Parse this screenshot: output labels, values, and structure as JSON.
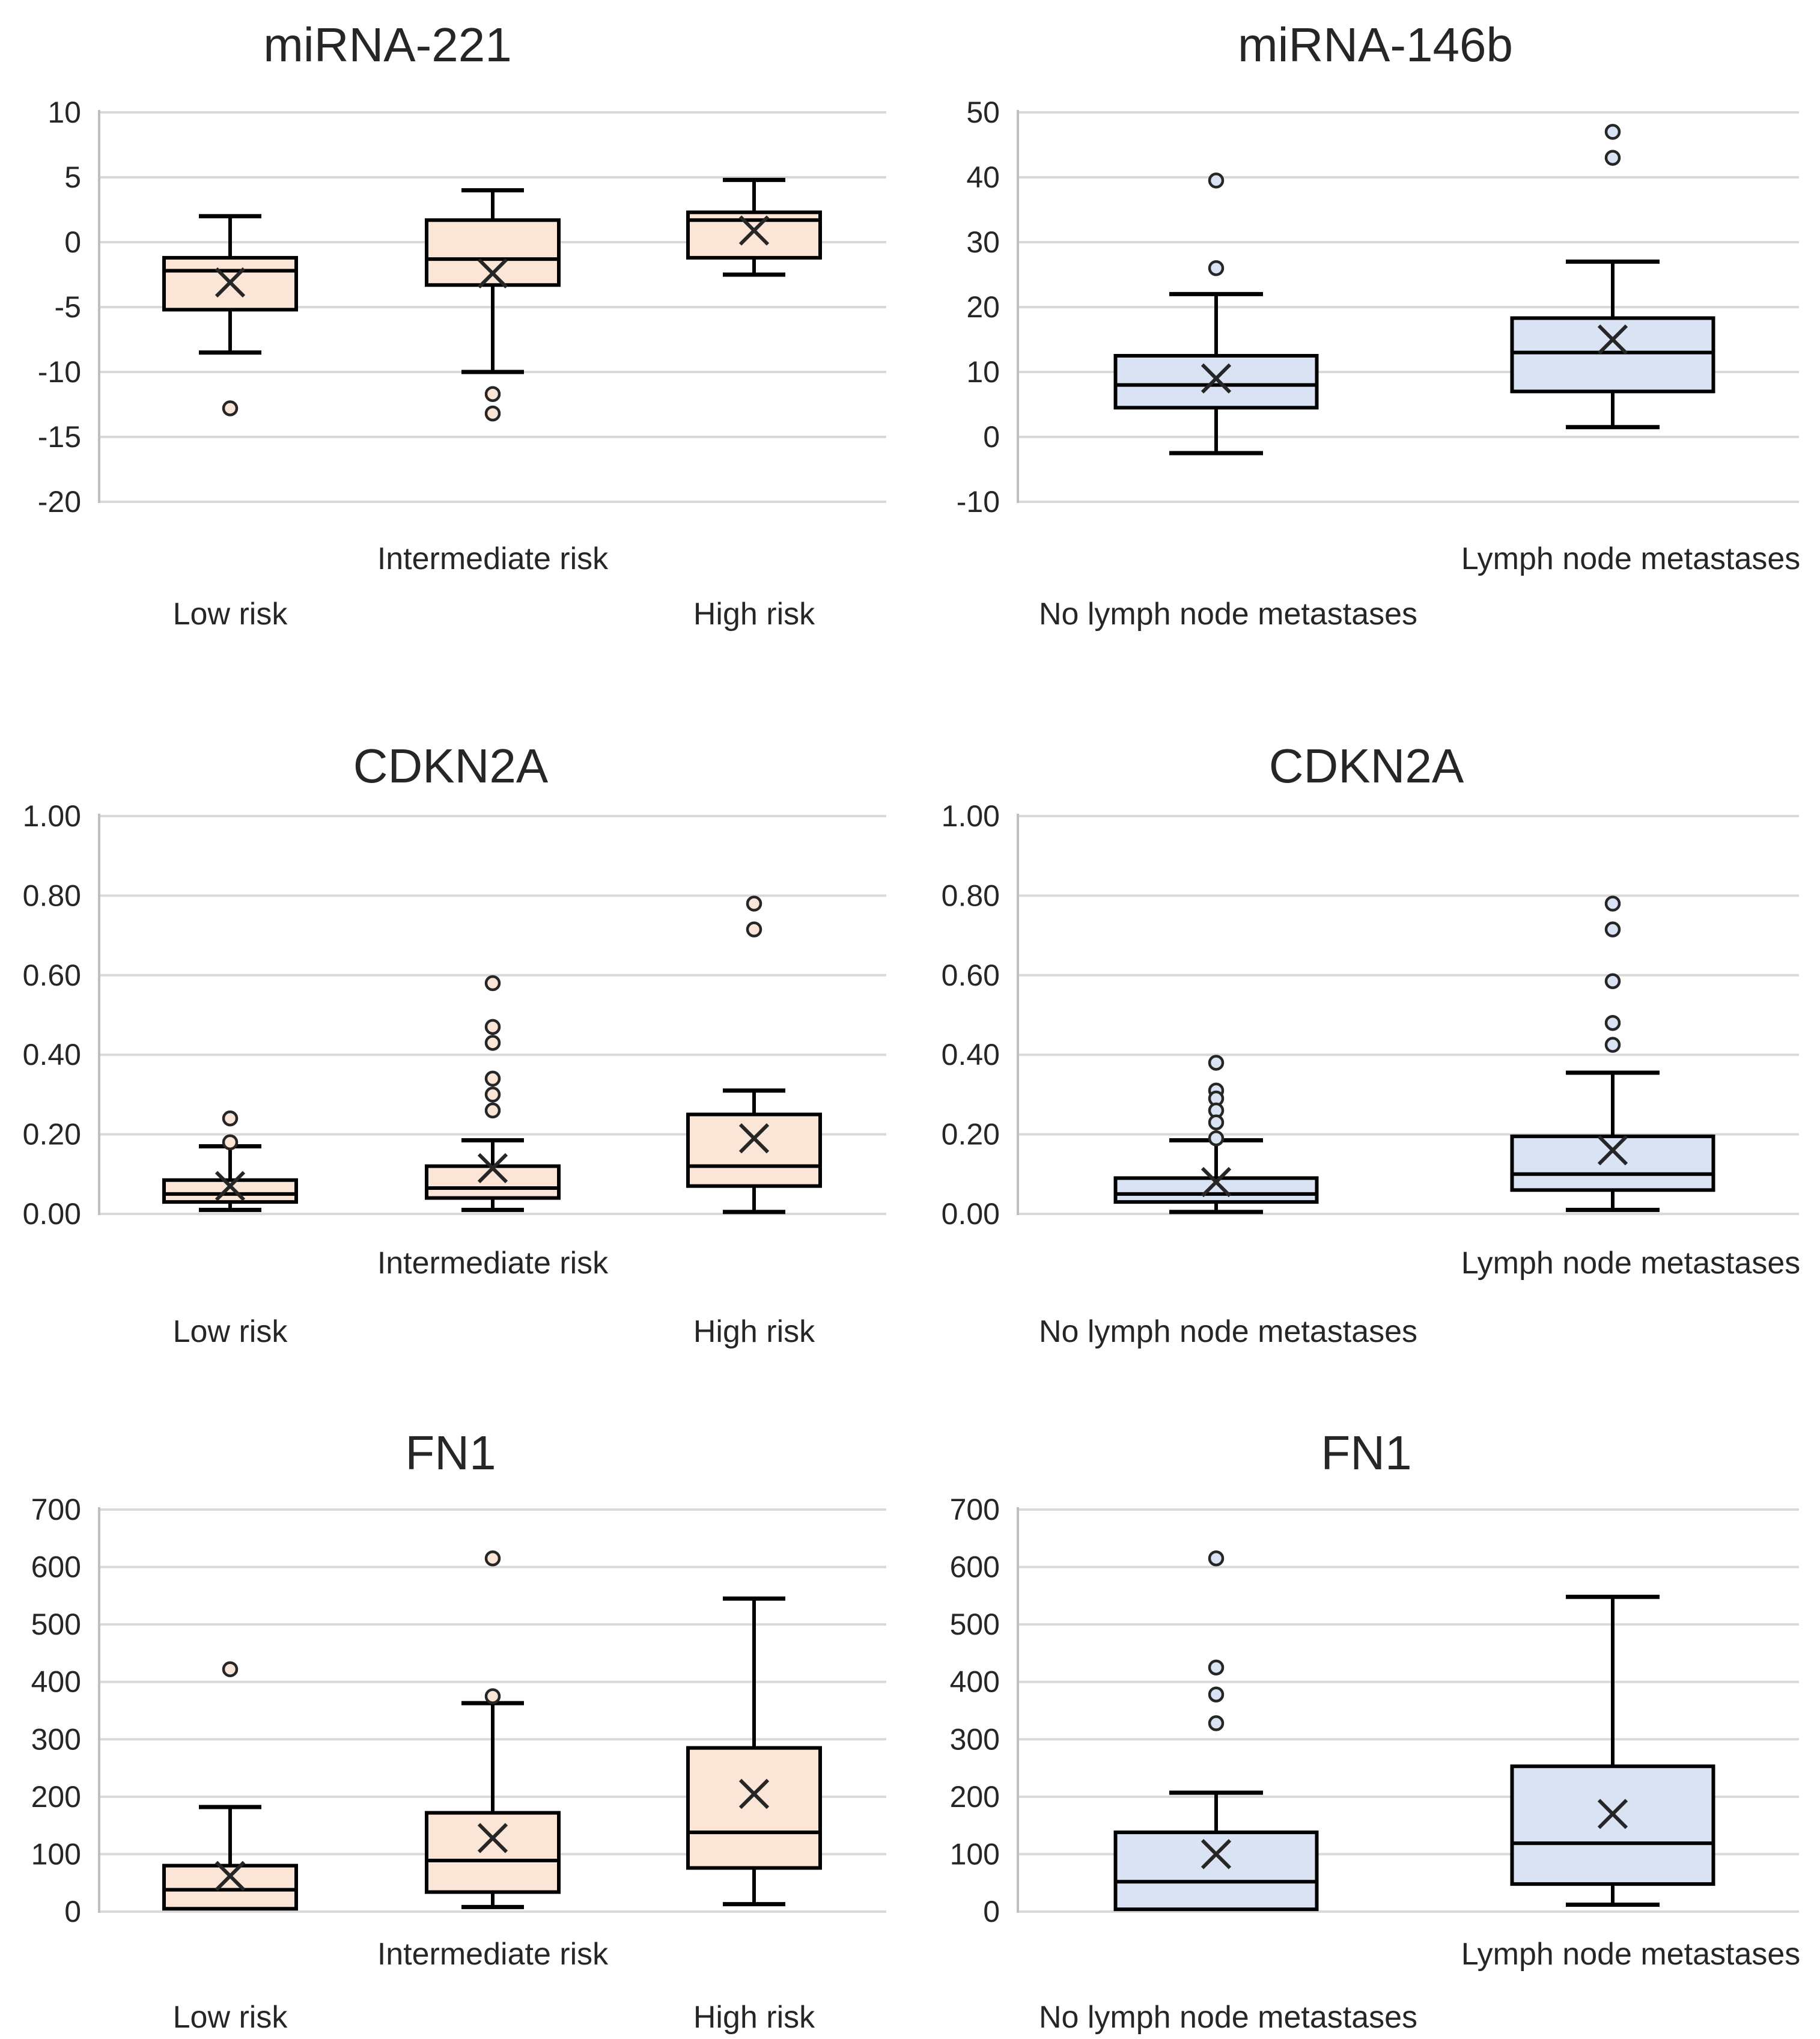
{
  "figure": {
    "description": "Six box-and-whisker panels comparing expression by risk group (left, peach) and by lymph node metastasis status (right, blue)",
    "colors": {
      "peach_fill": "#FBE5D6",
      "blue_fill": "#DAE3F3",
      "box_border": "#000000",
      "marker_ink": "#262626",
      "gridline": "#D9D9D9",
      "axis_line": "#BFBFBF",
      "text": "#262626",
      "background": "#FFFFFF"
    }
  },
  "chart_data": [
    {
      "type": "boxplot",
      "title": "miRNA-221",
      "fill": "#FBE5D6",
      "ylim": [
        -20,
        10
      ],
      "grid": true,
      "yticks": [
        {
          "value": 10,
          "label": "10"
        },
        {
          "value": 5,
          "label": "5"
        },
        {
          "value": 0,
          "label": "0"
        },
        {
          "value": -5,
          "label": "-5"
        },
        {
          "value": -10,
          "label": "-10"
        },
        {
          "value": -15,
          "label": "-15"
        },
        {
          "value": -20,
          "label": "-20"
        }
      ],
      "categories": [
        "Low risk",
        "Intermediate risk",
        "High risk"
      ],
      "series": [
        {
          "name": "Low risk",
          "label_row": "lower",
          "whisker_low": -8.5,
          "q1": -5.2,
          "median": -2.2,
          "q3": -1.2,
          "whisker_high": 2.0,
          "mean": -3.1,
          "outliers": [
            -12.8
          ]
        },
        {
          "name": "Intermediate risk",
          "label_row": "upper",
          "whisker_low": -10.0,
          "q1": -3.3,
          "median": -1.3,
          "q3": 1.7,
          "whisker_high": 4.0,
          "mean": -2.4,
          "outliers": [
            -11.7,
            -13.2
          ]
        },
        {
          "name": "High risk",
          "label_row": "lower",
          "whisker_low": -2.5,
          "q1": -1.2,
          "median": 1.7,
          "q3": 2.3,
          "whisker_high": 4.8,
          "mean": 0.9,
          "outliers": []
        }
      ]
    },
    {
      "type": "boxplot",
      "title": "miRNA-146b",
      "fill": "#DAE3F3",
      "ylim": [
        -10,
        50
      ],
      "grid": true,
      "yticks": [
        {
          "value": 50,
          "label": "50"
        },
        {
          "value": 40,
          "label": "40"
        },
        {
          "value": 30,
          "label": "30"
        },
        {
          "value": 20,
          "label": "20"
        },
        {
          "value": 10,
          "label": "10"
        },
        {
          "value": 0,
          "label": "0"
        },
        {
          "value": -10,
          "label": "-10"
        }
      ],
      "categories": [
        "No lymph node metastases",
        "Lymph node metastases"
      ],
      "series": [
        {
          "name": "No lymph node metastases",
          "label_row": "lower",
          "whisker_low": -2.5,
          "q1": 4.5,
          "median": 8,
          "q3": 12.5,
          "whisker_high": 22,
          "mean": 9,
          "outliers": [
            39.5,
            26
          ]
        },
        {
          "name": "Lymph node metastases",
          "label_row": "upper",
          "whisker_low": 1.5,
          "q1": 7,
          "median": 13,
          "q3": 18.3,
          "whisker_high": 27,
          "mean": 15,
          "outliers": [
            47,
            43
          ]
        }
      ]
    },
    {
      "type": "boxplot",
      "title": "CDKN2A",
      "fill": "#FBE5D6",
      "ylim": [
        0,
        1
      ],
      "grid": true,
      "yticks": [
        {
          "value": 1.0,
          "label": "1.00"
        },
        {
          "value": 0.8,
          "label": "0.80"
        },
        {
          "value": 0.6,
          "label": "0.60"
        },
        {
          "value": 0.4,
          "label": "0.40"
        },
        {
          "value": 0.2,
          "label": "0.20"
        },
        {
          "value": 0.0,
          "label": "0.00"
        }
      ],
      "categories": [
        "Low risk",
        "Intermediate risk",
        "High risk"
      ],
      "series": [
        {
          "name": "Low risk",
          "label_row": "lower",
          "whisker_low": 0.01,
          "q1": 0.03,
          "median": 0.05,
          "q3": 0.085,
          "whisker_high": 0.17,
          "mean": 0.07,
          "outliers": [
            0.24,
            0.18
          ]
        },
        {
          "name": "Intermediate risk",
          "label_row": "upper",
          "whisker_low": 0.01,
          "q1": 0.04,
          "median": 0.065,
          "q3": 0.12,
          "whisker_high": 0.185,
          "mean": 0.115,
          "outliers": [
            0.58,
            0.47,
            0.43,
            0.34,
            0.3,
            0.26
          ]
        },
        {
          "name": "High risk",
          "label_row": "lower",
          "whisker_low": 0.005,
          "q1": 0.07,
          "median": 0.12,
          "q3": 0.25,
          "whisker_high": 0.31,
          "mean": 0.19,
          "outliers": [
            0.78,
            0.715
          ]
        }
      ]
    },
    {
      "type": "boxplot",
      "title": "CDKN2A",
      "fill": "#DAE3F3",
      "ylim": [
        0,
        1
      ],
      "grid": true,
      "yticks": [
        {
          "value": 1.0,
          "label": "1.00"
        },
        {
          "value": 0.8,
          "label": "0.80"
        },
        {
          "value": 0.6,
          "label": "0.60"
        },
        {
          "value": 0.4,
          "label": "0.40"
        },
        {
          "value": 0.2,
          "label": "0.20"
        },
        {
          "value": 0.0,
          "label": "0.00"
        }
      ],
      "categories": [
        "No lymph node metastases",
        "Lymph node metastases"
      ],
      "series": [
        {
          "name": "No lymph node metastases",
          "label_row": "lower",
          "whisker_low": 0.005,
          "q1": 0.03,
          "median": 0.05,
          "q3": 0.09,
          "whisker_high": 0.185,
          "mean": 0.08,
          "outliers": [
            0.38,
            0.31,
            0.29,
            0.26,
            0.23,
            0.19
          ]
        },
        {
          "name": "Lymph node metastases",
          "label_row": "upper",
          "whisker_low": 0.01,
          "q1": 0.06,
          "median": 0.1,
          "q3": 0.195,
          "whisker_high": 0.355,
          "mean": 0.16,
          "outliers": [
            0.78,
            0.715,
            0.585,
            0.48,
            0.425
          ]
        }
      ]
    },
    {
      "type": "boxplot",
      "title": "FN1",
      "fill": "#FBE5D6",
      "ylim": [
        0,
        700
      ],
      "grid": true,
      "yticks": [
        {
          "value": 700,
          "label": "700"
        },
        {
          "value": 600,
          "label": "600"
        },
        {
          "value": 500,
          "label": "500"
        },
        {
          "value": 400,
          "label": "400"
        },
        {
          "value": 300,
          "label": "300"
        },
        {
          "value": 200,
          "label": "200"
        },
        {
          "value": 100,
          "label": "100"
        },
        {
          "value": 0,
          "label": "0"
        }
      ],
      "categories": [
        "Low risk",
        "Intermediate risk",
        "High risk"
      ],
      "series": [
        {
          "name": "Low risk",
          "label_row": "lower",
          "whisker_low": 5,
          "q1": 5,
          "median": 38,
          "q3": 80,
          "whisker_high": 182,
          "mean": 62,
          "outliers": [
            422
          ]
        },
        {
          "name": "Intermediate risk",
          "label_row": "upper",
          "whisker_low": 8,
          "q1": 34,
          "median": 89,
          "q3": 172,
          "whisker_high": 363,
          "mean": 128,
          "outliers": [
            615,
            375
          ]
        },
        {
          "name": "High risk",
          "label_row": "lower",
          "whisker_low": 13,
          "q1": 76,
          "median": 138,
          "q3": 285,
          "whisker_high": 545,
          "mean": 205,
          "outliers": []
        }
      ]
    },
    {
      "type": "boxplot",
      "title": "FN1",
      "fill": "#DAE3F3",
      "ylim": [
        0,
        700
      ],
      "grid": true,
      "yticks": [
        {
          "value": 700,
          "label": "700"
        },
        {
          "value": 600,
          "label": "600"
        },
        {
          "value": 500,
          "label": "500"
        },
        {
          "value": 400,
          "label": "400"
        },
        {
          "value": 300,
          "label": "300"
        },
        {
          "value": 200,
          "label": "200"
        },
        {
          "value": 100,
          "label": "100"
        },
        {
          "value": 0,
          "label": "0"
        }
      ],
      "categories": [
        "No lymph node metastases",
        "Lymph node metastases"
      ],
      "series": [
        {
          "name": "No lymph node metastases",
          "label_row": "lower",
          "whisker_low": 4,
          "q1": 4,
          "median": 52,
          "q3": 138,
          "whisker_high": 207,
          "mean": 100,
          "outliers": [
            615,
            425,
            378,
            328
          ]
        },
        {
          "name": "Lymph node metastases",
          "label_row": "upper",
          "whisker_low": 12,
          "q1": 48,
          "median": 119,
          "q3": 253,
          "whisker_high": 548,
          "mean": 170,
          "outliers": []
        }
      ]
    }
  ]
}
